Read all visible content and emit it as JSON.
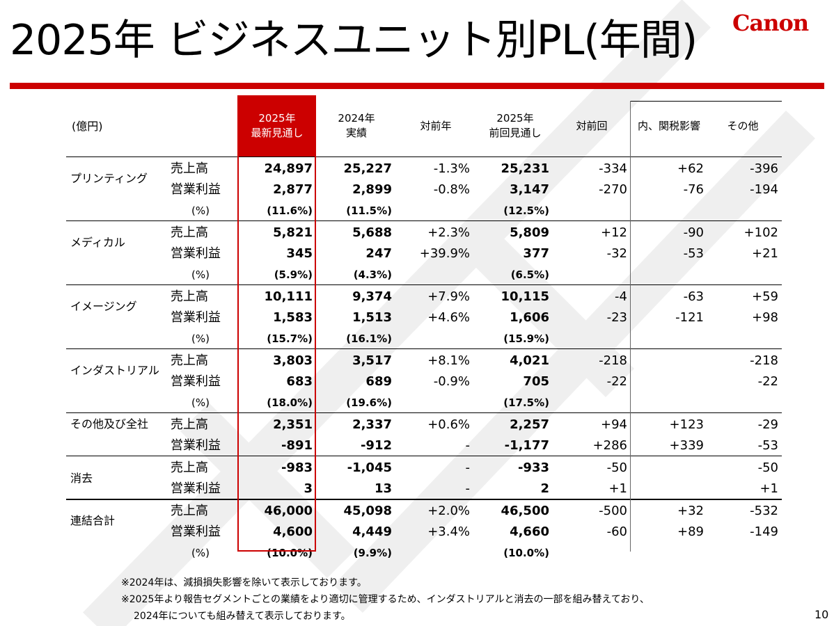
{
  "title": "2025年 ビジネスユニット別PL(年間)",
  "logo_text": "Canon",
  "brand_color": "#cc0000",
  "header": {
    "unit": "(億円)",
    "col1": "2025年\n最新見通し",
    "col2": "2024年\n実績",
    "col3": "対前年",
    "col4": "2025年\n前回見通し",
    "col5": "対前回",
    "col6": "内、関税影響",
    "col7": "その他"
  },
  "segments": [
    {
      "name": "プリンティング",
      "rows": [
        {
          "label": "売上高",
          "v": [
            "24,897",
            "25,227",
            "-1.3%",
            "25,231",
            "-334",
            "+62",
            "-396"
          ]
        },
        {
          "label": "営業利益",
          "v": [
            "2,877",
            "2,899",
            "-0.8%",
            "3,147",
            "-270",
            "-76",
            "-194"
          ]
        },
        {
          "label": "(%)",
          "v": [
            "(11.6%)",
            "(11.5%)",
            "",
            "(12.5%)",
            "",
            "",
            ""
          ]
        }
      ]
    },
    {
      "name": "メディカル",
      "rows": [
        {
          "label": "売上高",
          "v": [
            "5,821",
            "5,688",
            "+2.3%",
            "5,809",
            "+12",
            "-90",
            "+102"
          ]
        },
        {
          "label": "営業利益",
          "v": [
            "345",
            "247",
            "+39.9%",
            "377",
            "-32",
            "-53",
            "+21"
          ]
        },
        {
          "label": "(%)",
          "v": [
            "(5.9%)",
            "(4.3%)",
            "",
            "(6.5%)",
            "",
            "",
            ""
          ]
        }
      ]
    },
    {
      "name": "イメージング",
      "rows": [
        {
          "label": "売上高",
          "v": [
            "10,111",
            "9,374",
            "+7.9%",
            "10,115",
            "-4",
            "-63",
            "+59"
          ]
        },
        {
          "label": "営業利益",
          "v": [
            "1,583",
            "1,513",
            "+4.6%",
            "1,606",
            "-23",
            "-121",
            "+98"
          ]
        },
        {
          "label": "(%)",
          "v": [
            "(15.7%)",
            "(16.1%)",
            "",
            "(15.9%)",
            "",
            "",
            ""
          ]
        }
      ]
    },
    {
      "name": "インダストリアル",
      "rows": [
        {
          "label": "売上高",
          "v": [
            "3,803",
            "3,517",
            "+8.1%",
            "4,021",
            "-218",
            "",
            "-218"
          ]
        },
        {
          "label": "営業利益",
          "v": [
            "683",
            "689",
            "-0.9%",
            "705",
            "-22",
            "",
            "-22"
          ]
        },
        {
          "label": "(%)",
          "v": [
            "(18.0%)",
            "(19.6%)",
            "",
            "(17.5%)",
            "",
            "",
            ""
          ]
        }
      ]
    },
    {
      "name": "その他及び全社",
      "rows": [
        {
          "label": "売上高",
          "v": [
            "2,351",
            "2,337",
            "+0.6%",
            "2,257",
            "+94",
            "+123",
            "-29"
          ]
        },
        {
          "label": "営業利益",
          "v": [
            "-891",
            "-912",
            "-",
            "-1,177",
            "+286",
            "+339",
            "-53"
          ]
        }
      ]
    },
    {
      "name": "消去",
      "rows": [
        {
          "label": "売上高",
          "v": [
            "-983",
            "-1,045",
            "-",
            "-933",
            "-50",
            "",
            "-50"
          ]
        },
        {
          "label": "営業利益",
          "v": [
            "3",
            "13",
            "-",
            "2",
            "+1",
            "",
            "+1"
          ]
        }
      ]
    },
    {
      "name": "連結合計",
      "rows": [
        {
          "label": "売上高",
          "v": [
            "46,000",
            "45,098",
            "+2.0%",
            "46,500",
            "-500",
            "+32",
            "-532"
          ]
        },
        {
          "label": "営業利益",
          "v": [
            "4,600",
            "4,449",
            "+3.4%",
            "4,660",
            "-60",
            "+89",
            "-149"
          ]
        },
        {
          "label": "(%)",
          "v": [
            "(10.0%)",
            "(9.9%)",
            "",
            "(10.0%)",
            "",
            "",
            ""
          ]
        }
      ]
    }
  ],
  "footer": {
    "note1": "※2024年は、減損損失影響を除いて表示しております。",
    "note2": "※2025年より報告セグメントごとの業績をより適切に管理するため、インダストリアルと消去の一部を組み替えており、",
    "note3": "2024年についても組み替えて表示しております。"
  },
  "page_number": "10"
}
